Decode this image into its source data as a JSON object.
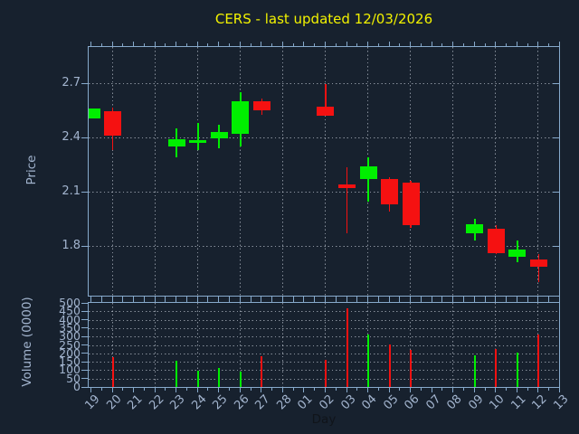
{
  "title": {
    "text": "CERS - last updated 12/03/2026",
    "color": "#f2f200"
  },
  "price_axis": {
    "label": "Price",
    "tick_labels": [
      "2.7",
      "2.4",
      "2.1",
      "1.8"
    ],
    "tick_values": [
      2.7,
      2.4,
      2.1,
      1.8
    ],
    "range": [
      1.52,
      2.9
    ]
  },
  "volume_axis": {
    "label": "Volume (0000)",
    "tick_labels": [
      "500",
      "450",
      "400",
      "350",
      "300",
      "250",
      "200",
      "150",
      "100",
      "50",
      "0"
    ],
    "tick_values": [
      500,
      450,
      400,
      350,
      300,
      250,
      200,
      150,
      100,
      50,
      0
    ],
    "range": [
      0,
      500
    ]
  },
  "x_axis": {
    "label": "Day",
    "tick_labels": [
      "19",
      "20",
      "21",
      "22",
      "23",
      "24",
      "25",
      "26",
      "27",
      "28",
      "01",
      "02",
      "03",
      "04",
      "05",
      "06",
      "07",
      "08",
      "09",
      "10",
      "11",
      "12",
      "13"
    ],
    "gridline_days": [
      "20",
      "22",
      "24",
      "26",
      "28",
      "02",
      "04",
      "06",
      "08",
      "10",
      "12"
    ]
  },
  "chart_data": {
    "type": "candlestick-with-volume",
    "x": [
      "19",
      "20",
      "21",
      "22",
      "23",
      "24",
      "25",
      "26",
      "27",
      "28",
      "01",
      "02",
      "03",
      "04",
      "05",
      "06",
      "07",
      "08",
      "09",
      "10",
      "11",
      "12",
      "13"
    ],
    "candles": [
      {
        "day": "19",
        "open": 2.505,
        "high": 2.56,
        "low": 2.505,
        "close": 2.56,
        "volume": 0
      },
      {
        "day": "20",
        "open": 2.545,
        "high": 2.565,
        "low": 2.33,
        "close": 2.41,
        "volume": 180
      },
      {
        "day": "23",
        "open": 2.35,
        "high": 2.45,
        "low": 2.29,
        "close": 2.39,
        "volume": 155
      },
      {
        "day": "24",
        "open": 2.375,
        "high": 2.48,
        "low": 2.33,
        "close": 2.385,
        "volume": 95
      },
      {
        "day": "25",
        "open": 2.395,
        "high": 2.47,
        "low": 2.34,
        "close": 2.43,
        "volume": 115
      },
      {
        "day": "26",
        "open": 2.42,
        "high": 2.65,
        "low": 2.35,
        "close": 2.6,
        "volume": 90
      },
      {
        "day": "27",
        "open": 2.6,
        "high": 2.615,
        "low": 2.525,
        "close": 2.55,
        "volume": 185
      },
      {
        "day": "02",
        "open": 2.57,
        "high": 2.695,
        "low": 2.52,
        "close": 2.52,
        "volume": 160
      },
      {
        "day": "03",
        "open": 2.14,
        "high": 2.235,
        "low": 1.87,
        "close": 2.12,
        "volume": 470
      },
      {
        "day": "04",
        "open": 2.17,
        "high": 2.29,
        "low": 2.045,
        "close": 2.24,
        "volume": 310
      },
      {
        "day": "05",
        "open": 2.17,
        "high": 2.18,
        "low": 1.99,
        "close": 2.03,
        "volume": 255
      },
      {
        "day": "06",
        "open": 2.15,
        "high": 2.16,
        "low": 1.9,
        "close": 1.915,
        "volume": 220
      },
      {
        "day": "09",
        "open": 1.87,
        "high": 1.95,
        "low": 1.83,
        "close": 1.92,
        "volume": 190
      },
      {
        "day": "10",
        "open": 1.895,
        "high": 1.915,
        "low": 1.755,
        "close": 1.76,
        "volume": 225
      },
      {
        "day": "11",
        "open": 1.74,
        "high": 1.83,
        "low": 1.71,
        "close": 1.78,
        "volume": 205
      },
      {
        "day": "12",
        "open": 1.725,
        "high": 1.755,
        "low": 1.6,
        "close": 1.685,
        "volume": 310
      }
    ],
    "colors": {
      "up": "#00ef00",
      "down": "#f51111"
    },
    "layout": {
      "grid": true,
      "volume_units": "0000"
    }
  }
}
